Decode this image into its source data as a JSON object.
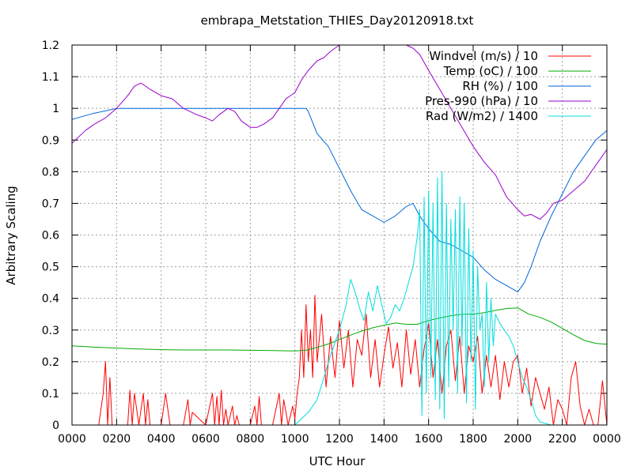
{
  "chart_data": {
    "type": "line",
    "title": "embrapa_Metstation_THIES_Day20120918.txt",
    "xlabel": "UTC Hour",
    "ylabel": "Arbitrary Scaling",
    "xlim": [
      0,
      24
    ],
    "ylim": [
      0,
      1.2
    ],
    "grid": true,
    "legend_position": "top-right",
    "x_ticks": [
      0,
      2,
      4,
      6,
      8,
      10,
      12,
      14,
      16,
      18,
      20,
      22,
      24
    ],
    "x_tick_labels": [
      "0000",
      "0200",
      "0400",
      "0600",
      "0800",
      "1000",
      "1200",
      "1400",
      "1600",
      "1800",
      "2000",
      "2200",
      "0000"
    ],
    "y_ticks": [
      0,
      0.1,
      0.2,
      0.3,
      0.4,
      0.5,
      0.6,
      0.7,
      0.8,
      0.9,
      1,
      1.1,
      1.2
    ],
    "y_tick_labels": [
      "0",
      "0.1",
      "0.2",
      "0.3",
      "0.4",
      "0.5",
      "0.6",
      "0.7",
      "0.8",
      "0.9",
      "1",
      "1.1",
      "1.2"
    ],
    "series": [
      {
        "name": "Windvel (m/s) / 10",
        "color": "#ff0000",
        "x": [
          0,
          1.2,
          1.4,
          1.5,
          1.6,
          1.7,
          1.8,
          2.0,
          2.5,
          2.6,
          2.7,
          2.8,
          3.0,
          3.2,
          3.3,
          3.4,
          3.5,
          4.0,
          4.2,
          4.3,
          4.4,
          5.0,
          5.2,
          5.3,
          5.4,
          6.0,
          6.3,
          6.4,
          6.5,
          6.6,
          6.7,
          6.8,
          6.9,
          7.0,
          7.2,
          7.3,
          7.4,
          7.5,
          8.0,
          8.2,
          8.3,
          8.4,
          8.5,
          9.0,
          9.3,
          9.4,
          9.5,
          9.7,
          9.9,
          10.0,
          10.1,
          10.2,
          10.3,
          10.4,
          10.5,
          10.6,
          10.7,
          10.8,
          10.9,
          11.0,
          11.2,
          11.4,
          11.6,
          11.8,
          12.0,
          12.2,
          12.4,
          12.6,
          12.8,
          13.0,
          13.2,
          13.4,
          13.6,
          13.8,
          14.0,
          14.2,
          14.4,
          14.6,
          14.8,
          15.0,
          15.2,
          15.4,
          15.6,
          15.8,
          16.0,
          16.2,
          16.4,
          16.6,
          16.8,
          17.0,
          17.2,
          17.4,
          17.6,
          17.8,
          18.0,
          18.2,
          18.4,
          18.6,
          18.8,
          19.0,
          19.2,
          19.4,
          19.6,
          19.8,
          20.0,
          20.2,
          20.4,
          20.6,
          20.8,
          21.0,
          21.2,
          21.4,
          21.6,
          21.8,
          22.0,
          22.2,
          22.4,
          22.6,
          22.8,
          23.0,
          23.2,
          23.4,
          23.6,
          23.8,
          24.0
        ],
        "values": [
          0,
          0,
          0.1,
          0.2,
          0,
          0.15,
          0,
          0,
          0,
          0.11,
          0,
          0.1,
          0,
          0.1,
          0,
          0.08,
          0,
          0,
          0.1,
          0.05,
          0,
          0,
          0.08,
          0,
          0.04,
          0,
          0.1,
          0,
          0.09,
          0,
          0.11,
          0,
          0.05,
          0,
          0.06,
          0,
          0.03,
          0,
          0,
          0.06,
          0,
          0.09,
          0,
          0,
          0.1,
          0,
          0.08,
          0,
          0.06,
          0.02,
          0.1,
          0.15,
          0.3,
          0.15,
          0.38,
          0.2,
          0.3,
          0.15,
          0.41,
          0.2,
          0.35,
          0.12,
          0.28,
          0.15,
          0.33,
          0.18,
          0.3,
          0.12,
          0.27,
          0.22,
          0.35,
          0.15,
          0.27,
          0.12,
          0.22,
          0.31,
          0.18,
          0.26,
          0.12,
          0.3,
          0.16,
          0.27,
          0.12,
          0.24,
          0.32,
          0.15,
          0.27,
          0.1,
          0.25,
          0.3,
          0.14,
          0.28,
          0.1,
          0.25,
          0.2,
          0.28,
          0.1,
          0.22,
          0.12,
          0.22,
          0.08,
          0.2,
          0.12,
          0.2,
          0.22,
          0.1,
          0.18,
          0.06,
          0.15,
          0.1,
          0.05,
          0.12,
          0,
          0.08,
          0.05,
          0,
          0.15,
          0.2,
          0.06,
          0,
          0.05,
          0,
          0,
          0.14,
          0
        ]
      },
      {
        "name": "Temp (oC) / 100",
        "color": "#00aa00",
        "x": [
          0,
          1,
          2,
          3,
          4,
          5,
          6,
          7,
          8,
          9,
          10,
          10.5,
          11,
          11.5,
          12,
          12.5,
          13,
          13.5,
          14,
          14.5,
          15,
          15.5,
          16,
          16.5,
          17,
          17.5,
          18,
          18.5,
          19,
          19.5,
          20,
          20.5,
          21,
          21.5,
          22,
          22.5,
          23,
          23.5,
          24
        ],
        "values": [
          0.25,
          0.246,
          0.243,
          0.24,
          0.238,
          0.237,
          0.237,
          0.237,
          0.236,
          0.235,
          0.234,
          0.236,
          0.245,
          0.256,
          0.27,
          0.284,
          0.297,
          0.307,
          0.315,
          0.322,
          0.318,
          0.318,
          0.33,
          0.338,
          0.345,
          0.35,
          0.35,
          0.355,
          0.362,
          0.368,
          0.37,
          0.35,
          0.34,
          0.325,
          0.305,
          0.285,
          0.267,
          0.258,
          0.255
        ]
      },
      {
        "name": "RH (%) / 100",
        "color": "#0066dd",
        "x": [
          0,
          0.5,
          1,
          1.5,
          2,
          3,
          4,
          5,
          6,
          7,
          8,
          9,
          10,
          10.5,
          10.6,
          11,
          11.5,
          12,
          12.5,
          13,
          13.5,
          14,
          14.5,
          15,
          15.3,
          15.6,
          16,
          16.5,
          17,
          17.5,
          18,
          18.5,
          19,
          19.5,
          20,
          20.3,
          20.6,
          21,
          21.5,
          22,
          22.5,
          23,
          23.5,
          24
        ],
        "values": [
          0.965,
          0.975,
          0.985,
          0.992,
          1.0,
          1.0,
          1.0,
          1.0,
          1.0,
          1.0,
          1.0,
          1.0,
          1.0,
          1.0,
          0.99,
          0.92,
          0.88,
          0.81,
          0.74,
          0.68,
          0.66,
          0.64,
          0.66,
          0.69,
          0.7,
          0.66,
          0.62,
          0.58,
          0.57,
          0.55,
          0.53,
          0.49,
          0.46,
          0.44,
          0.42,
          0.45,
          0.5,
          0.58,
          0.66,
          0.73,
          0.8,
          0.85,
          0.9,
          0.93
        ]
      },
      {
        "name": "Pres-990 (hPa) / 10",
        "color": "#9900cc",
        "x": [
          0,
          0.3,
          0.6,
          1,
          1.5,
          2,
          2.5,
          2.8,
          3.1,
          3.5,
          4,
          4.5,
          5,
          5.3,
          5.6,
          6,
          6.3,
          6.6,
          7,
          7.3,
          7.6,
          8,
          8.3,
          8.6,
          9,
          9.3,
          9.6,
          10,
          10.3,
          10.6,
          11,
          11.3,
          11.6,
          12,
          12.1,
          12.3,
          12.6,
          13,
          13.5,
          14,
          14.5,
          15,
          15.3,
          15.6,
          16,
          16.5,
          17,
          17.5,
          18,
          18.5,
          19,
          19.5,
          20,
          20.3,
          20.6,
          21,
          21.3,
          21.6,
          22,
          22.5,
          23,
          23.5,
          24
        ],
        "values": [
          0.89,
          0.91,
          0.93,
          0.95,
          0.97,
          1.0,
          1.04,
          1.07,
          1.08,
          1.06,
          1.04,
          1.03,
          1.0,
          0.99,
          0.98,
          0.97,
          0.96,
          0.98,
          1.0,
          0.99,
          0.96,
          0.94,
          0.94,
          0.95,
          0.97,
          1.0,
          1.03,
          1.05,
          1.09,
          1.12,
          1.15,
          1.16,
          1.18,
          1.2,
          1.21,
          1.2,
          1.2,
          1.22,
          1.22,
          1.23,
          1.22,
          1.2,
          1.19,
          1.17,
          1.12,
          1.06,
          1.0,
          0.94,
          0.88,
          0.83,
          0.79,
          0.72,
          0.68,
          0.66,
          0.665,
          0.65,
          0.67,
          0.7,
          0.71,
          0.74,
          0.77,
          0.82,
          0.87
        ]
      },
      {
        "name": "Rad (W/m2) / 1400",
        "color": "#00dddd",
        "x": [
          0,
          10,
          10.3,
          10.6,
          11,
          11.3,
          11.6,
          12,
          12.3,
          12.5,
          12.7,
          12.9,
          13.1,
          13.3,
          13.5,
          13.7,
          13.9,
          14.1,
          14.3,
          14.5,
          14.7,
          14.9,
          15.1,
          15.3,
          15.5,
          15.6,
          15.7,
          15.8,
          15.9,
          16.0,
          16.1,
          16.2,
          16.3,
          16.4,
          16.5,
          16.6,
          16.7,
          16.8,
          16.9,
          17.0,
          17.1,
          17.2,
          17.3,
          17.4,
          17.5,
          17.6,
          17.7,
          17.8,
          17.9,
          18.0,
          18.1,
          18.2,
          18.3,
          18.4,
          18.5,
          18.6,
          18.7,
          18.8,
          18.9,
          19.0,
          19.2,
          19.4,
          19.6,
          19.8,
          20.0,
          20.2,
          20.4,
          20.6,
          20.8,
          21.0,
          21.5,
          22.0,
          24.0
        ],
        "values": [
          0,
          0,
          0.02,
          0.04,
          0.08,
          0.15,
          0.22,
          0.3,
          0.38,
          0.46,
          0.42,
          0.37,
          0.33,
          0.42,
          0.36,
          0.44,
          0.38,
          0.32,
          0.34,
          0.38,
          0.36,
          0.4,
          0.45,
          0.5,
          0.6,
          0.68,
          0.03,
          0.72,
          0.1,
          0.74,
          0.15,
          0.7,
          0.08,
          0.78,
          0.05,
          0.8,
          0.02,
          0.7,
          0.12,
          0.65,
          0.3,
          0.68,
          0.1,
          0.72,
          0.25,
          0.7,
          0.07,
          0.62,
          0.2,
          0.55,
          0.05,
          0.5,
          0.3,
          0.35,
          0.12,
          0.45,
          0.2,
          0.4,
          0.25,
          0.35,
          0.32,
          0.3,
          0.28,
          0.25,
          0.2,
          0.15,
          0.12,
          0.08,
          0.03,
          0.01,
          0,
          0,
          0
        ]
      }
    ]
  }
}
